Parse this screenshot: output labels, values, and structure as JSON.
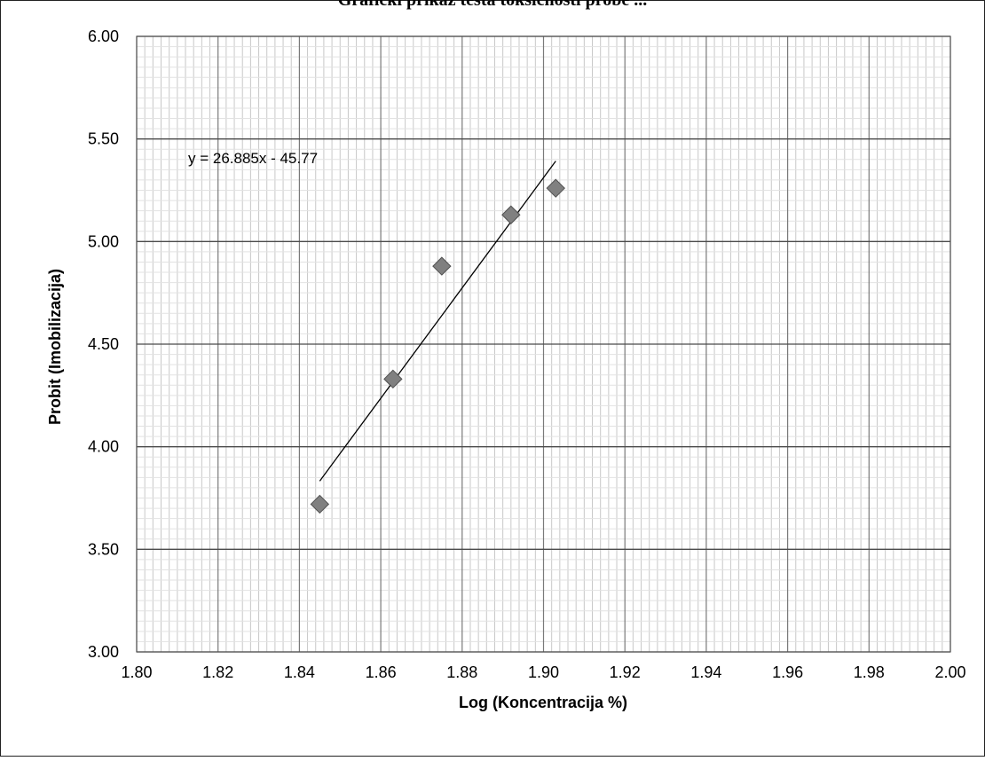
{
  "page": {
    "title": "Grafički prikaz testa toksičnosti probe ..."
  },
  "chart_data": {
    "type": "scatter",
    "title": "Grafički prikaz testa toksičnosti probe ...",
    "xlabel": "Log (Koncentracija %)",
    "ylabel": "Probit (Imobilizacija)",
    "xlim": [
      1.8,
      2.0
    ],
    "ylim": [
      3.0,
      6.0
    ],
    "x_ticks": [
      "1.80",
      "1.82",
      "1.84",
      "1.86",
      "1.88",
      "1.90",
      "1.92",
      "1.94",
      "1.96",
      "1.98",
      "2.00"
    ],
    "y_ticks": [
      "3.00",
      "3.50",
      "4.00",
      "4.50",
      "5.00",
      "5.50",
      "6.00"
    ],
    "grid": true,
    "series": [
      {
        "marker": "diamond",
        "color": "#808080",
        "points": [
          {
            "x": 1.845,
            "y": 3.72
          },
          {
            "x": 1.863,
            "y": 4.33
          },
          {
            "x": 1.875,
            "y": 4.88
          },
          {
            "x": 1.892,
            "y": 5.13
          },
          {
            "x": 1.903,
            "y": 5.26
          }
        ]
      }
    ],
    "trendline": {
      "type": "linear",
      "slope": 26.885,
      "intercept": -45.77,
      "x_range": [
        1.845,
        1.903
      ],
      "equation_label": "y = 26.885x - 45.77"
    }
  }
}
